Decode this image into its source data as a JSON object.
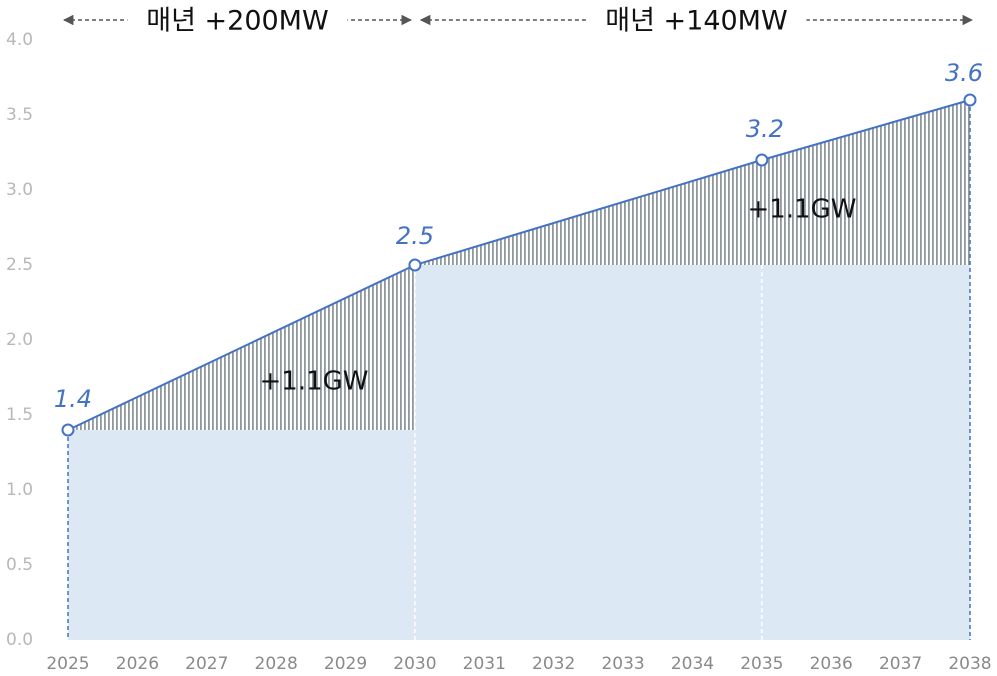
{
  "chart_data": {
    "type": "line",
    "x": [
      2025,
      2030,
      2035,
      2038
    ],
    "series": [
      {
        "name": null,
        "color": "#4472c4",
        "values": [
          1.4,
          2.5,
          3.2,
          3.6
        ]
      }
    ],
    "xlim": [
      2025,
      2038
    ],
    "xticks": [
      2025,
      2026,
      2027,
      2028,
      2029,
      2030,
      2031,
      2032,
      2033,
      2034,
      2035,
      2036,
      2037,
      2038
    ],
    "ylim": [
      0,
      4
    ],
    "yticks": [
      {
        "value": 0,
        "label": "0.0"
      },
      0.5,
      {
        "value": 1,
        "label": "1.0"
      },
      1.5,
      {
        "value": 2,
        "label": "2.0"
      },
      2.5,
      {
        "value": 3,
        "label": "3.0"
      },
      3.5,
      {
        "value": 4,
        "label": "4.0"
      }
    ],
    "phases": [
      {
        "label": "매년 +200MW",
        "from": 2025,
        "to": 2030,
        "increase": "+1.1GW"
      },
      {
        "label": "매년 +140MW",
        "from": 2030,
        "to": 2038,
        "increase": "+1.1GW"
      }
    ]
  }
}
